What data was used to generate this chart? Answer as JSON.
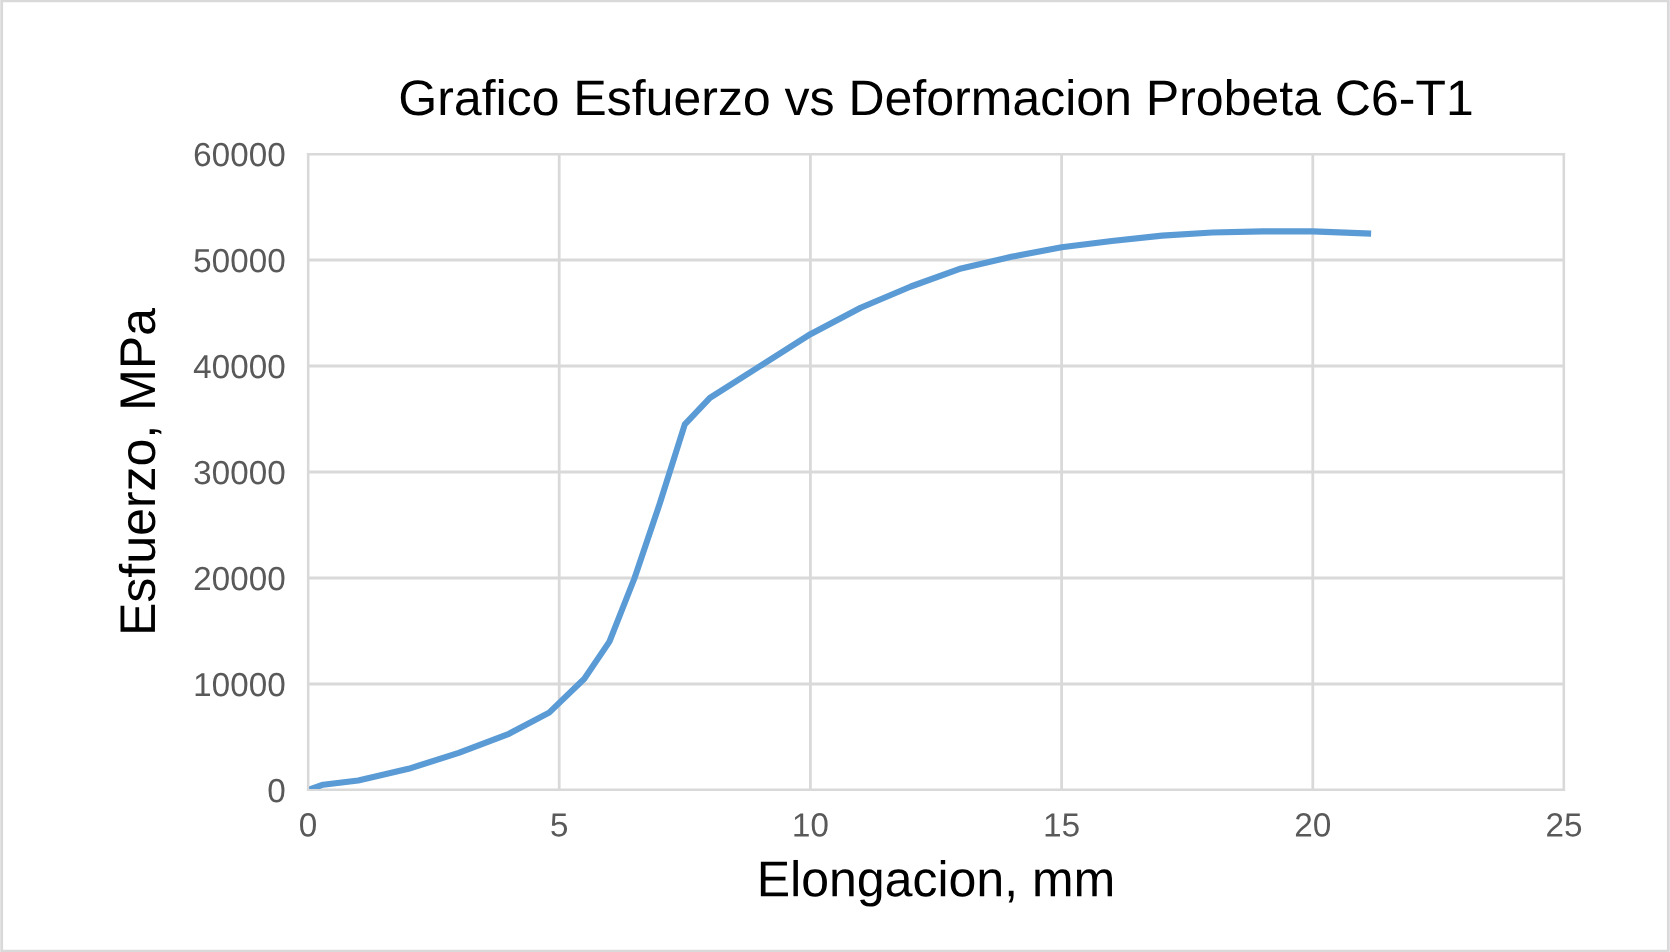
{
  "chart_data": {
    "type": "line",
    "title": "Grafico Esfuerzo vs Deformacion Probeta C6-T1",
    "xlabel": "Elongacion, mm",
    "ylabel": "Esfuerzo, MPa",
    "series": [
      {
        "color": "#5b9bd5",
        "x": [
          0,
          0.3,
          1,
          2,
          3,
          4,
          4.8,
          5.5,
          6,
          6.5,
          7,
          7.3,
          7.5,
          8,
          9,
          10,
          11,
          12,
          13,
          14,
          15,
          16,
          17,
          18,
          19,
          20,
          21.1
        ],
        "values": [
          0,
          500,
          900,
          2000,
          3500,
          5300,
          7300,
          10500,
          14000,
          20000,
          27000,
          31500,
          34500,
          37000,
          40000,
          43000,
          45500,
          47500,
          49200,
          50300,
          51200,
          51800,
          52300,
          52600,
          52700,
          52700,
          52500
        ]
      }
    ],
    "xlim": [
      0,
      25
    ],
    "xticks": [
      0,
      5,
      10,
      15,
      20,
      25
    ],
    "ylim": [
      0,
      60000
    ],
    "yticks": [
      0,
      10000,
      20000,
      30000,
      40000,
      50000,
      60000
    ],
    "grid": true,
    "marker": "none",
    "line_style": "solid"
  }
}
